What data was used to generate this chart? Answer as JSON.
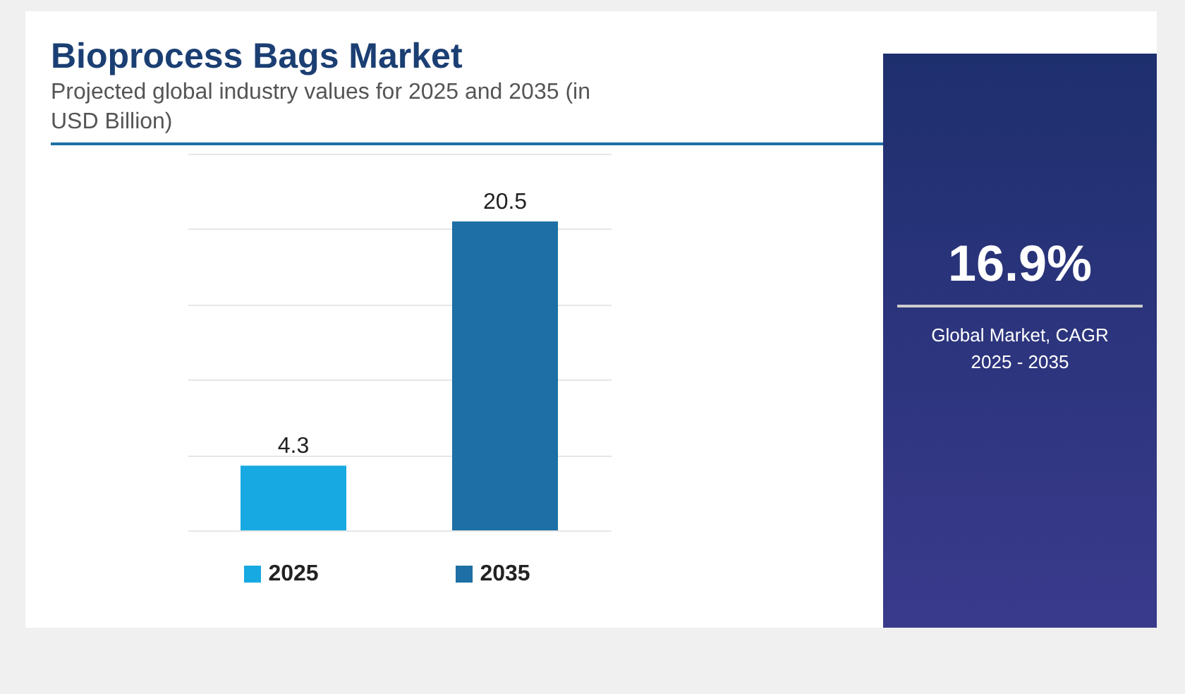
{
  "chart_data": {
    "type": "bar",
    "title": "Bioprocess Bags Market",
    "subtitle": "Projected global industry values for 2025 and 2035 (in USD Billion)",
    "categories": [
      "2025",
      "2035"
    ],
    "values": [
      4.3,
      20.5
    ],
    "colors": [
      "#17a9e1",
      "#1d6fa5"
    ],
    "ylim": [
      0,
      25
    ],
    "yticks": [
      {
        "value": 0,
        "label": null
      },
      {
        "value": 5,
        "label": null
      },
      {
        "value": 10,
        "label": null
      },
      {
        "value": 15,
        "label": null
      },
      {
        "value": 20,
        "label": null
      },
      {
        "value": 25,
        "label": null
      }
    ],
    "grid": "y",
    "tick_labels": "x",
    "data_labels": true,
    "annotations": [
      "16.9%",
      "Global Market, CAGR 2025 - 2035"
    ]
  }
}
